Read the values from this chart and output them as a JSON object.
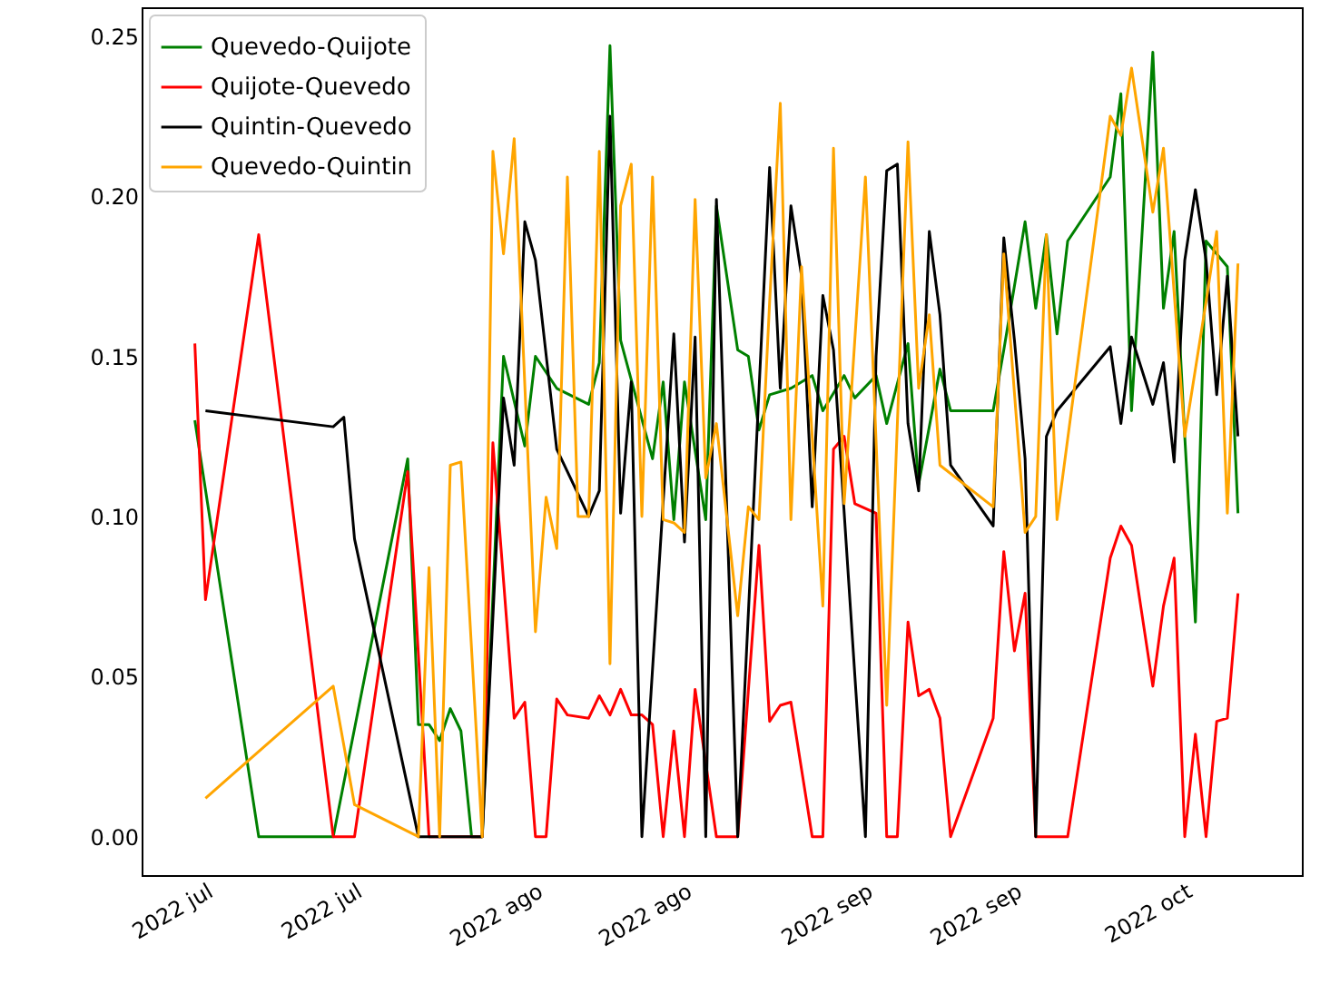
{
  "chart_data": {
    "type": "line",
    "legend": "top left",
    "grid": false,
    "marker": "none",
    "line_style": "solid",
    "xlim": [
      "2022-06-25",
      "2022-10-12"
    ],
    "xticks": [
      {
        "value": "2022-07-01",
        "label": "2022 jul"
      },
      {
        "value": "2022-07-15",
        "label": "2022 jul"
      },
      {
        "value": "2022-08-01",
        "label": "2022 ago"
      },
      {
        "value": "2022-08-15",
        "label": "2022 ago"
      },
      {
        "value": "2022-09-01",
        "label": "2022 sep"
      },
      {
        "value": "2022-09-15",
        "label": "2022 sep"
      },
      {
        "value": "2022-10-01",
        "label": "2022 oct"
      }
    ],
    "ylim": [
      -0.012,
      0.259
    ],
    "yticks": [
      {
        "value": 0,
        "label": "0.00"
      },
      {
        "value": 0.05,
        "label": "0.05"
      },
      {
        "value": 0.1,
        "label": "0.10"
      },
      {
        "value": 0.15,
        "label": "0.15"
      },
      {
        "value": 0.2,
        "label": "0.20"
      },
      {
        "value": 0.25,
        "label": "0.25"
      }
    ],
    "series": [
      {
        "name": "Quevedo-Quijote",
        "color": "#008000",
        "x": [
          "2022-06-30",
          "2022-07-06",
          "2022-07-13",
          "2022-07-20",
          "2022-07-21",
          "2022-07-22",
          "2022-07-23",
          "2022-07-24",
          "2022-07-25",
          "2022-07-26",
          "2022-07-27",
          "2022-07-29",
          "2022-07-31",
          "2022-08-01",
          "2022-08-03",
          "2022-08-06",
          "2022-08-07",
          "2022-08-08",
          "2022-08-09",
          "2022-08-12",
          "2022-08-13",
          "2022-08-14",
          "2022-08-15",
          "2022-08-17",
          "2022-08-18",
          "2022-08-20",
          "2022-08-21",
          "2022-08-22",
          "2022-08-23",
          "2022-08-25",
          "2022-08-27",
          "2022-08-28",
          "2022-08-30",
          "2022-08-31",
          "2022-09-02",
          "2022-09-03",
          "2022-09-05",
          "2022-09-06",
          "2022-09-08",
          "2022-09-09",
          "2022-09-13",
          "2022-09-14",
          "2022-09-16",
          "2022-09-17",
          "2022-09-18",
          "2022-09-19",
          "2022-09-20",
          "2022-09-24",
          "2022-09-25",
          "2022-09-26",
          "2022-09-28",
          "2022-09-29",
          "2022-09-30",
          "2022-10-01",
          "2022-10-02",
          "2022-10-03",
          "2022-10-05",
          "2022-10-06"
        ],
        "values": [
          0.13,
          0,
          0,
          0.118,
          0.035,
          0.035,
          0.03,
          0.04,
          0.033,
          0,
          0,
          0.15,
          0.122,
          0.15,
          0.14,
          0.135,
          0.148,
          0.247,
          0.155,
          0.118,
          0.142,
          0.099,
          0.142,
          0.099,
          0.197,
          0.152,
          0.15,
          0.127,
          0.138,
          0.14,
          0.144,
          0.133,
          0.144,
          0.137,
          0.144,
          0.129,
          0.154,
          0.11,
          0.146,
          0.133,
          0.133,
          0.152,
          0.192,
          0.165,
          0.188,
          0.157,
          0.186,
          0.206,
          0.232,
          0.133,
          0.245,
          0.165,
          0.189,
          0.125,
          0.067,
          0.186,
          0.178,
          0.101
        ]
      },
      {
        "name": "Quijote-Quevedo",
        "color": "#ff0000",
        "x": [
          "2022-06-30",
          "2022-07-01",
          "2022-07-06",
          "2022-07-13",
          "2022-07-15",
          "2022-07-20",
          "2022-07-22",
          "2022-07-27",
          "2022-07-28",
          "2022-07-30",
          "2022-07-31",
          "2022-08-01",
          "2022-08-02",
          "2022-08-03",
          "2022-08-04",
          "2022-08-06",
          "2022-08-07",
          "2022-08-08",
          "2022-08-09",
          "2022-08-10",
          "2022-08-11",
          "2022-08-12",
          "2022-08-13",
          "2022-08-14",
          "2022-08-15",
          "2022-08-16",
          "2022-08-18",
          "2022-08-20",
          "2022-08-22",
          "2022-08-23",
          "2022-08-24",
          "2022-08-25",
          "2022-08-27",
          "2022-08-28",
          "2022-08-29",
          "2022-08-30",
          "2022-08-31",
          "2022-09-02",
          "2022-09-03",
          "2022-09-04",
          "2022-09-05",
          "2022-09-06",
          "2022-09-07",
          "2022-09-08",
          "2022-09-09",
          "2022-09-13",
          "2022-09-14",
          "2022-09-15",
          "2022-09-16",
          "2022-09-17",
          "2022-09-19",
          "2022-09-20",
          "2022-09-24",
          "2022-09-25",
          "2022-09-26",
          "2022-09-28",
          "2022-09-29",
          "2022-09-30",
          "2022-10-01",
          "2022-10-02",
          "2022-10-03",
          "2022-10-04",
          "2022-10-05",
          "2022-10-06"
        ],
        "values": [
          0.154,
          0.074,
          0.188,
          0,
          0,
          0.114,
          0,
          0,
          0.123,
          0.037,
          0.042,
          0,
          0,
          0.043,
          0.038,
          0.037,
          0.044,
          0.038,
          0.046,
          0.038,
          0.038,
          0.035,
          0,
          0.033,
          0,
          0.046,
          0,
          0,
          0.091,
          0.036,
          0.041,
          0.042,
          0,
          0,
          0.121,
          0.125,
          0.104,
          0.101,
          0,
          0,
          0.067,
          0.044,
          0.046,
          0.037,
          0,
          0.037,
          0.089,
          0.058,
          0.076,
          0,
          0,
          0,
          0.087,
          0.097,
          0.091,
          0.047,
          0.072,
          0.087,
          0,
          0.032,
          0,
          0.036,
          0.037,
          0.076
        ]
      },
      {
        "name": "Quintin-Quevedo",
        "color": "#000000",
        "x": [
          "2022-07-01",
          "2022-07-13",
          "2022-07-14",
          "2022-07-15",
          "2022-07-21",
          "2022-07-27",
          "2022-07-29",
          "2022-07-30",
          "2022-07-31",
          "2022-08-01",
          "2022-08-03",
          "2022-08-06",
          "2022-08-07",
          "2022-08-08",
          "2022-08-09",
          "2022-08-10",
          "2022-08-11",
          "2022-08-14",
          "2022-08-15",
          "2022-08-16",
          "2022-08-17",
          "2022-08-18",
          "2022-08-20",
          "2022-08-23",
          "2022-08-24",
          "2022-08-25",
          "2022-08-26",
          "2022-08-27",
          "2022-08-28",
          "2022-08-29",
          "2022-09-01",
          "2022-09-02",
          "2022-09-03",
          "2022-09-04",
          "2022-09-05",
          "2022-09-06",
          "2022-09-07",
          "2022-09-08",
          "2022-09-09",
          "2022-09-13",
          "2022-09-14",
          "2022-09-15",
          "2022-09-16",
          "2022-09-17",
          "2022-09-18",
          "2022-09-19",
          "2022-09-24",
          "2022-09-25",
          "2022-09-26",
          "2022-09-28",
          "2022-09-29",
          "2022-09-30",
          "2022-10-01",
          "2022-10-02",
          "2022-10-03",
          "2022-10-04",
          "2022-10-05",
          "2022-10-06"
        ],
        "values": [
          0.133,
          0.128,
          0.131,
          0.093,
          0,
          0,
          0.137,
          0.116,
          0.192,
          0.18,
          0.121,
          0.1,
          0.108,
          0.225,
          0.101,
          0.142,
          0,
          0.157,
          0.092,
          0.156,
          0,
          0.199,
          0,
          0.209,
          0.14,
          0.197,
          0.175,
          0.103,
          0.169,
          0.152,
          0,
          0.15,
          0.208,
          0.21,
          0.129,
          0.108,
          0.189,
          0.163,
          0.116,
          0.097,
          0.187,
          0.155,
          0.118,
          0,
          0.125,
          0.133,
          0.153,
          0.129,
          0.156,
          0.135,
          0.148,
          0.117,
          0.18,
          0.202,
          0.18,
          0.138,
          0.175,
          0.125
        ]
      },
      {
        "name": "Quevedo-Quintin",
        "color": "#ffa500",
        "x": [
          "2022-07-01",
          "2022-07-13",
          "2022-07-15",
          "2022-07-21",
          "2022-07-22",
          "2022-07-23",
          "2022-07-24",
          "2022-07-25",
          "2022-07-27",
          "2022-07-28",
          "2022-07-29",
          "2022-07-30",
          "2022-08-01",
          "2022-08-02",
          "2022-08-03",
          "2022-08-04",
          "2022-08-05",
          "2022-08-06",
          "2022-08-07",
          "2022-08-08",
          "2022-08-09",
          "2022-08-10",
          "2022-08-11",
          "2022-08-12",
          "2022-08-13",
          "2022-08-14",
          "2022-08-15",
          "2022-08-16",
          "2022-08-17",
          "2022-08-18",
          "2022-08-20",
          "2022-08-21",
          "2022-08-22",
          "2022-08-23",
          "2022-08-24",
          "2022-08-25",
          "2022-08-26",
          "2022-08-28",
          "2022-08-29",
          "2022-08-30",
          "2022-09-01",
          "2022-09-03",
          "2022-09-05",
          "2022-09-06",
          "2022-09-07",
          "2022-09-08",
          "2022-09-13",
          "2022-09-14",
          "2022-09-16",
          "2022-09-17",
          "2022-09-18",
          "2022-09-19",
          "2022-09-24",
          "2022-09-25",
          "2022-09-26",
          "2022-09-28",
          "2022-09-29",
          "2022-10-01",
          "2022-10-03",
          "2022-10-04",
          "2022-10-05",
          "2022-10-06"
        ],
        "values": [
          0.012,
          0.047,
          0.01,
          0,
          0.084,
          0,
          0.116,
          0.117,
          0,
          0.214,
          0.182,
          0.218,
          0.064,
          0.106,
          0.09,
          0.206,
          0.1,
          0.1,
          0.214,
          0.054,
          0.197,
          0.21,
          0.1,
          0.206,
          0.099,
          0.098,
          0.095,
          0.199,
          0.112,
          0.129,
          0.069,
          0.103,
          0.099,
          0.167,
          0.229,
          0.099,
          0.178,
          0.072,
          0.215,
          0.104,
          0.206,
          0.041,
          0.217,
          0.14,
          0.163,
          0.116,
          0.103,
          0.182,
          0.095,
          0.1,
          0.188,
          0.099,
          0.225,
          0.219,
          0.24,
          0.195,
          0.215,
          0.125,
          0.167,
          0.189,
          0.101,
          0.179
        ]
      }
    ]
  }
}
